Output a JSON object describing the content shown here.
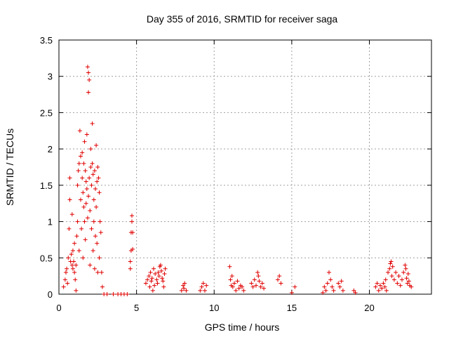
{
  "chart_data": {
    "type": "scatter",
    "title": "Day 355 of 2016, SRMTID for receiver saga",
    "xlabel": "GPS time / hours",
    "ylabel": "SRMTID / TECUs",
    "xlim": [
      0,
      24
    ],
    "ylim": [
      0,
      3.5
    ],
    "xticks": [
      0,
      5,
      10,
      15,
      20
    ],
    "xtick_labels": [
      "0",
      "5",
      "10",
      "15",
      "20"
    ],
    "yticks": [
      0,
      0.5,
      1,
      1.5,
      2,
      2.5,
      3,
      3.5
    ],
    "ytick_labels": [
      "0",
      "0.5",
      "1",
      "1.5",
      "2",
      "2.5",
      "3",
      "3.5"
    ],
    "grid": true,
    "marker": "+",
    "color": "#e00000",
    "series": [
      {
        "name": "SRMTID",
        "points": [
          [
            0.3,
            0.1
          ],
          [
            0.4,
            0.2
          ],
          [
            0.45,
            0.3
          ],
          [
            0.5,
            0.35
          ],
          [
            0.55,
            0.15
          ],
          [
            0.6,
            0.5
          ],
          [
            0.65,
            0.9
          ],
          [
            0.7,
            1.3
          ],
          [
            0.7,
            1.6
          ],
          [
            0.75,
            0.45
          ],
          [
            0.8,
            0.55
          ],
          [
            0.85,
            0.4
          ],
          [
            0.85,
            1.1
          ],
          [
            0.9,
            0.6
          ],
          [
            0.9,
            0.35
          ],
          [
            0.95,
            0.45
          ],
          [
            1.0,
            0.3
          ],
          [
            1.0,
            0.7
          ],
          [
            1.05,
            0.2
          ],
          [
            1.1,
            0.4
          ],
          [
            1.1,
            0.05
          ],
          [
            1.15,
            0.8
          ],
          [
            1.2,
            1.0
          ],
          [
            1.2,
            1.5
          ],
          [
            1.25,
            1.7
          ],
          [
            1.3,
            1.8
          ],
          [
            1.3,
            0.6
          ],
          [
            1.35,
            2.25
          ],
          [
            1.4,
            1.9
          ],
          [
            1.4,
            1.3
          ],
          [
            1.45,
            0.9
          ],
          [
            1.5,
            1.95
          ],
          [
            1.5,
            1.6
          ],
          [
            1.55,
            1.4
          ],
          [
            1.55,
            0.5
          ],
          [
            1.6,
            1.8
          ],
          [
            1.6,
            1.2
          ],
          [
            1.65,
            1.0
          ],
          [
            1.65,
            2.1
          ],
          [
            1.7,
            1.7
          ],
          [
            1.7,
            0.75
          ],
          [
            1.75,
            1.55
          ],
          [
            1.75,
            1.25
          ],
          [
            1.8,
            2.2
          ],
          [
            1.8,
            1.45
          ],
          [
            1.85,
            3.13
          ],
          [
            1.85,
            1.05
          ],
          [
            1.9,
            3.05
          ],
          [
            1.9,
            2.78
          ],
          [
            1.9,
            1.35
          ],
          [
            1.95,
            2.95
          ],
          [
            1.95,
            1.6
          ],
          [
            2.0,
            1.15
          ],
          [
            2.0,
            0.4
          ],
          [
            2.05,
            2.0
          ],
          [
            2.05,
            1.75
          ],
          [
            2.1,
            1.5
          ],
          [
            2.1,
            0.9
          ],
          [
            2.15,
            2.35
          ],
          [
            2.15,
            1.8
          ],
          [
            2.2,
            1.65
          ],
          [
            2.2,
            0.6
          ],
          [
            2.25,
            1.3
          ],
          [
            2.25,
            1.0
          ],
          [
            2.3,
            1.7
          ],
          [
            2.3,
            0.35
          ],
          [
            2.35,
            1.45
          ],
          [
            2.35,
            0.8
          ],
          [
            2.4,
            2.05
          ],
          [
            2.4,
            1.2
          ],
          [
            2.45,
            1.55
          ],
          [
            2.45,
            0.7
          ],
          [
            2.5,
            1.75
          ],
          [
            2.5,
            0.3
          ],
          [
            2.55,
            1.6
          ],
          [
            2.6,
            1.4
          ],
          [
            2.6,
            0.5
          ],
          [
            2.65,
            1.0
          ],
          [
            2.7,
            0.85
          ],
          [
            2.75,
            0.3
          ],
          [
            2.8,
            0.1
          ],
          [
            2.9,
            0.0
          ],
          [
            3.1,
            0.0
          ],
          [
            3.5,
            0.0
          ],
          [
            3.8,
            0.0
          ],
          [
            4.0,
            0.0
          ],
          [
            4.2,
            0.0
          ],
          [
            4.4,
            0.0
          ],
          [
            4.6,
            0.35
          ],
          [
            4.6,
            0.45
          ],
          [
            4.65,
            0.6
          ],
          [
            4.65,
            0.85
          ],
          [
            4.7,
            1.0
          ],
          [
            4.7,
            1.08
          ],
          [
            4.75,
            0.62
          ],
          [
            4.75,
            0.85
          ],
          [
            5.6,
            0.15
          ],
          [
            5.7,
            0.2
          ],
          [
            5.8,
            0.25
          ],
          [
            5.85,
            0.1
          ],
          [
            5.9,
            0.3
          ],
          [
            5.95,
            0.18
          ],
          [
            6.0,
            0.22
          ],
          [
            6.05,
            0.05
          ],
          [
            6.1,
            0.35
          ],
          [
            6.15,
            0.12
          ],
          [
            6.2,
            0.28
          ],
          [
            6.3,
            0.2
          ],
          [
            6.35,
            0.15
          ],
          [
            6.4,
            0.3
          ],
          [
            6.45,
            0.25
          ],
          [
            6.5,
            0.38
          ],
          [
            6.55,
            0.4
          ],
          [
            6.6,
            0.32
          ],
          [
            6.65,
            0.22
          ],
          [
            6.7,
            0.18
          ],
          [
            6.75,
            0.1
          ],
          [
            6.8,
            0.28
          ],
          [
            6.85,
            0.35
          ],
          [
            7.9,
            0.05
          ],
          [
            8.0,
            0.12
          ],
          [
            8.05,
            0.08
          ],
          [
            8.1,
            0.15
          ],
          [
            8.2,
            0.05
          ],
          [
            9.1,
            0.05
          ],
          [
            9.2,
            0.1
          ],
          [
            9.3,
            0.15
          ],
          [
            9.4,
            0.05
          ],
          [
            9.5,
            0.12
          ],
          [
            11.0,
            0.38
          ],
          [
            11.05,
            0.2
          ],
          [
            11.1,
            0.12
          ],
          [
            11.15,
            0.25
          ],
          [
            11.2,
            0.1
          ],
          [
            11.3,
            0.15
          ],
          [
            11.4,
            0.05
          ],
          [
            11.5,
            0.18
          ],
          [
            11.6,
            0.08
          ],
          [
            11.7,
            0.12
          ],
          [
            11.8,
            0.1
          ],
          [
            11.9,
            0.05
          ],
          [
            12.4,
            0.15
          ],
          [
            12.5,
            0.1
          ],
          [
            12.6,
            0.2
          ],
          [
            12.7,
            0.12
          ],
          [
            12.8,
            0.3
          ],
          [
            12.85,
            0.25
          ],
          [
            12.9,
            0.18
          ],
          [
            13.0,
            0.1
          ],
          [
            13.1,
            0.15
          ],
          [
            13.2,
            0.08
          ],
          [
            14.1,
            0.2
          ],
          [
            14.2,
            0.25
          ],
          [
            14.3,
            0.15
          ],
          [
            15.0,
            0.02
          ],
          [
            15.2,
            0.1
          ],
          [
            17.0,
            0.02
          ],
          [
            17.1,
            0.1
          ],
          [
            17.2,
            0.05
          ],
          [
            17.3,
            0.15
          ],
          [
            17.4,
            0.3
          ],
          [
            17.5,
            0.2
          ],
          [
            17.6,
            0.1
          ],
          [
            17.7,
            0.05
          ],
          [
            18.0,
            0.15
          ],
          [
            18.1,
            0.1
          ],
          [
            18.2,
            0.18
          ],
          [
            18.3,
            0.05
          ],
          [
            19.0,
            0.05
          ],
          [
            19.1,
            0.02
          ],
          [
            20.4,
            0.1
          ],
          [
            20.5,
            0.15
          ],
          [
            20.6,
            0.05
          ],
          [
            20.7,
            0.12
          ],
          [
            20.8,
            0.08
          ],
          [
            20.9,
            0.15
          ],
          [
            21.0,
            0.1
          ],
          [
            21.05,
            0.2
          ],
          [
            21.1,
            0.05
          ],
          [
            21.2,
            0.3
          ],
          [
            21.3,
            0.35
          ],
          [
            21.35,
            0.42
          ],
          [
            21.4,
            0.45
          ],
          [
            21.45,
            0.25
          ],
          [
            21.5,
            0.38
          ],
          [
            21.6,
            0.2
          ],
          [
            21.7,
            0.3
          ],
          [
            21.8,
            0.15
          ],
          [
            21.9,
            0.25
          ],
          [
            22.0,
            0.12
          ],
          [
            22.1,
            0.2
          ],
          [
            22.2,
            0.3
          ],
          [
            22.3,
            0.4
          ],
          [
            22.35,
            0.35
          ],
          [
            22.4,
            0.22
          ],
          [
            22.45,
            0.15
          ],
          [
            22.5,
            0.28
          ],
          [
            22.55,
            0.18
          ],
          [
            22.6,
            0.12
          ],
          [
            22.7,
            0.1
          ]
        ]
      }
    ]
  }
}
